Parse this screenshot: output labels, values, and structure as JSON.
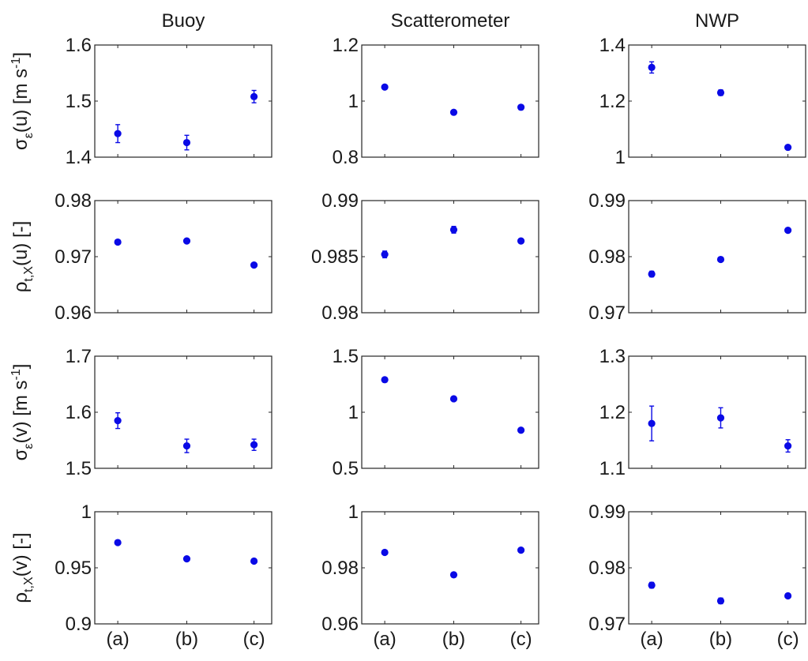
{
  "chart_data": {
    "type": "scatter",
    "grid": false,
    "categories": [
      "(a)",
      "(b)",
      "(c)"
    ],
    "columns": [
      "Buoy",
      "Scatterometer",
      "NWP"
    ],
    "rows": [
      {
        "ylabel": {
          "pre": "σ",
          "sub": "ε",
          "mid": "(u) [m s",
          "sup": "-1",
          "post": "]"
        },
        "panels": [
          {
            "ylim": [
              1.4,
              1.6
            ],
            "ticks": [
              "1.4",
              "1.5",
              "1.6"
            ],
            "values": [
              1.442,
              1.426,
              1.508
            ],
            "errors": [
              0.016,
              0.013,
              0.011
            ]
          },
          {
            "ylim": [
              0.8,
              1.2
            ],
            "ticks": [
              "0.8",
              "1",
              "1.2"
            ],
            "values": [
              1.05,
              0.96,
              0.978
            ],
            "errors": [
              0.007,
              0.007,
              0.006
            ]
          },
          {
            "ylim": [
              1,
              1.4
            ],
            "ticks": [
              "1",
              "1.2",
              "1.4"
            ],
            "values": [
              1.32,
              1.23,
              1.035
            ],
            "errors": [
              0.02,
              0.01,
              0.006
            ]
          }
        ]
      },
      {
        "ylabel": {
          "pre": "ρ",
          "sub": "t,X",
          "mid": "(u) [-]",
          "sup": "",
          "post": ""
        },
        "panels": [
          {
            "ylim": [
              0.96,
              0.98
            ],
            "ticks": [
              "0.96",
              "0.97",
              "0.98"
            ],
            "values": [
              0.9726,
              0.9728,
              0.9685
            ],
            "errors": [
              0.0004,
              0.0003,
              0.0003
            ]
          },
          {
            "ylim": [
              0.98,
              0.99
            ],
            "ticks": [
              "0.98",
              "0.985",
              "0.99"
            ],
            "values": [
              0.9852,
              0.9874,
              0.9864
            ],
            "errors": [
              0.0003,
              0.0003,
              0.0002
            ]
          },
          {
            "ylim": [
              0.97,
              0.99
            ],
            "ticks": [
              "0.97",
              "0.98",
              "0.99"
            ],
            "values": [
              0.9769,
              0.9795,
              0.9847
            ],
            "errors": [
              0.0005,
              0.0003,
              0.0002
            ]
          }
        ]
      },
      {
        "ylabel": {
          "pre": "σ",
          "sub": "ε",
          "mid": "(v) [m s",
          "sup": "-1",
          "post": "]"
        },
        "panels": [
          {
            "ylim": [
              1.5,
              1.7
            ],
            "ticks": [
              "1.5",
              "1.6",
              "1.7"
            ],
            "values": [
              1.585,
              1.54,
              1.542
            ],
            "errors": [
              0.014,
              0.012,
              0.01
            ]
          },
          {
            "ylim": [
              0.5,
              1.5
            ],
            "ticks": [
              "0.5",
              "1",
              "1.5"
            ],
            "values": [
              1.29,
              1.12,
              0.84
            ],
            "errors": [
              0.015,
              0.012,
              0.01
            ]
          },
          {
            "ylim": [
              1.1,
              1.3
            ],
            "ticks": [
              "1.1",
              "1.2",
              "1.3"
            ],
            "values": [
              1.18,
              1.19,
              1.14
            ],
            "errors": [
              0.031,
              0.018,
              0.011
            ]
          }
        ]
      },
      {
        "ylabel": {
          "pre": "ρ",
          "sub": "t,X",
          "mid": "(v) [-]",
          "sup": "",
          "post": ""
        },
        "panels": [
          {
            "ylim": [
              0.9,
              1
            ],
            "ticks": [
              "0.9",
              "0.95",
              "1"
            ],
            "values": [
              0.9725,
              0.958,
              0.956
            ],
            "errors": [
              0.001,
              0.001,
              0.001
            ]
          },
          {
            "ylim": [
              0.96,
              1
            ],
            "ticks": [
              "0.96",
              "0.98",
              "1"
            ],
            "values": [
              0.9855,
              0.9775,
              0.9863
            ],
            "errors": [
              0.0005,
              0.0004,
              0.0003
            ]
          },
          {
            "ylim": [
              0.97,
              0.99
            ],
            "ticks": [
              "0.97",
              "0.98",
              "0.99"
            ],
            "values": [
              0.9769,
              0.9741,
              0.975
            ],
            "errors": [
              0.0005,
              0.0005,
              0.0003
            ]
          }
        ]
      }
    ],
    "marker_color": "#0a0ae6"
  }
}
